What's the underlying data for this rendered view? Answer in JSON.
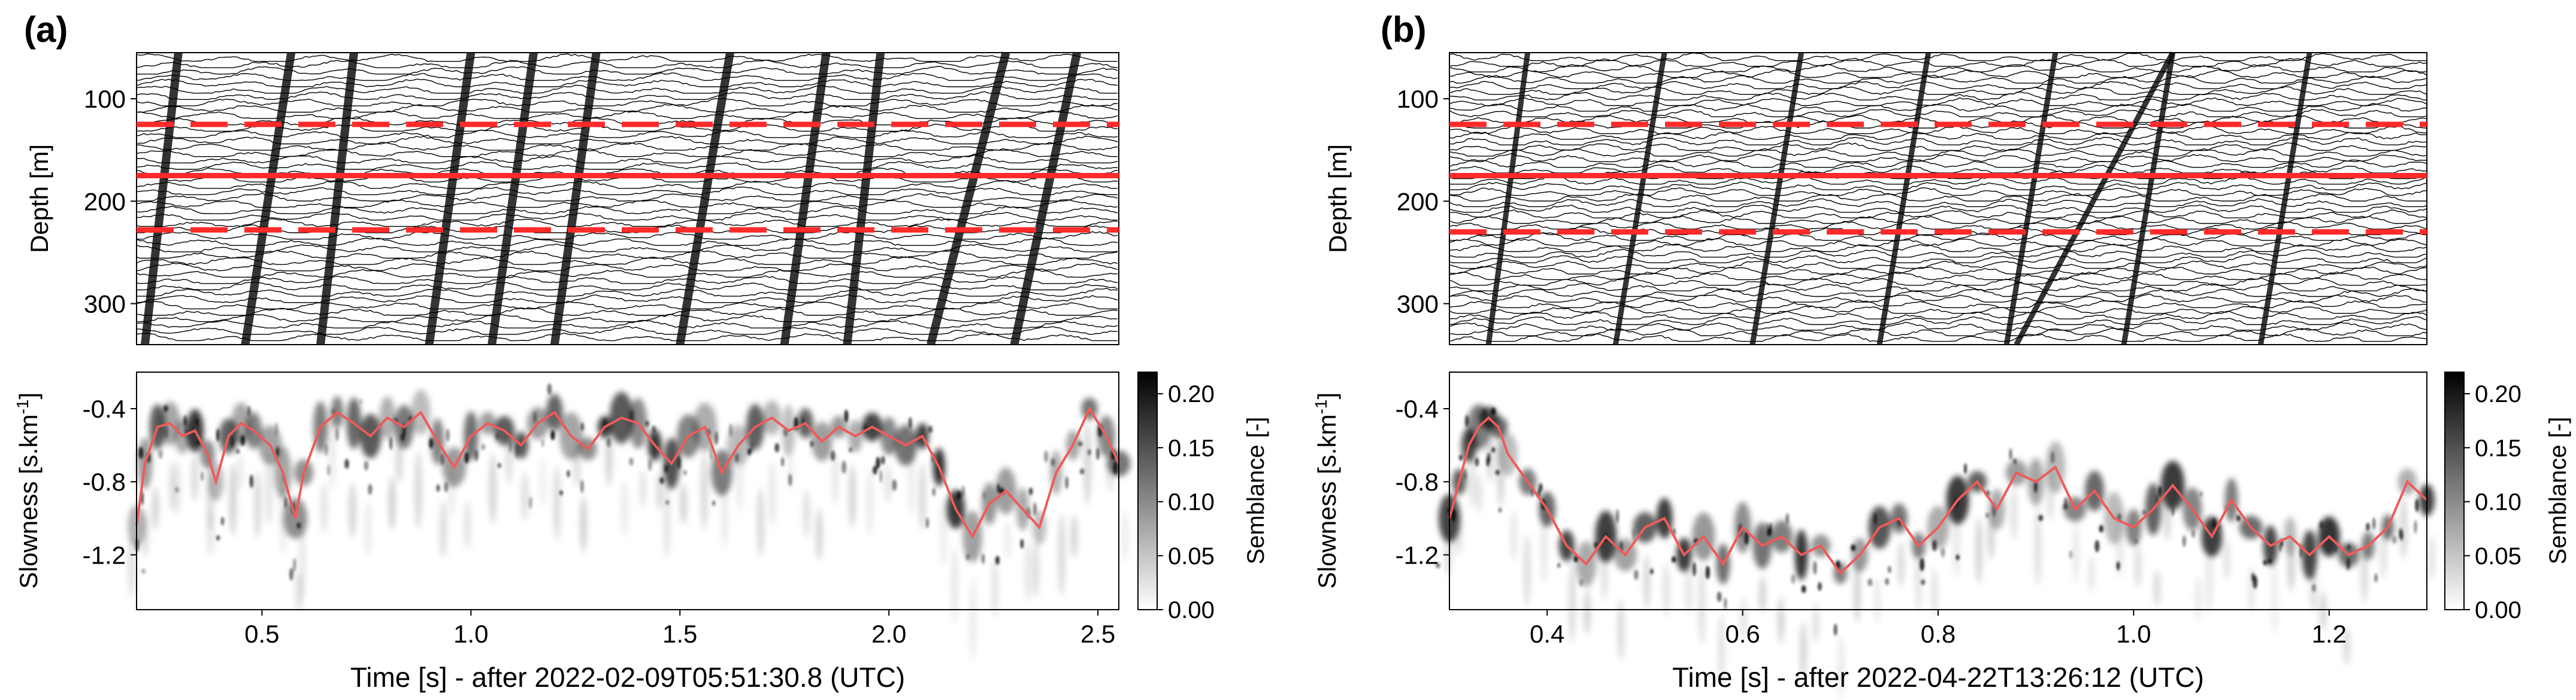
{
  "figure": {
    "panels": [
      {
        "label": "(a)",
        "xlabel": "Time [s] - after 2022-02-09T05:51:30.8 (UTC)",
        "xlim": [
          0.2,
          2.55
        ],
        "xticks": [
          0.5,
          1.0,
          1.5,
          2.0,
          2.5
        ],
        "xtick_labels": [
          "0.5",
          "1.0",
          "1.5",
          "2.0",
          "2.5"
        ]
      },
      {
        "label": "(b)",
        "xlabel": "Time [s] - after 2022-04-22T13:26:12 (UTC)",
        "xlim": [
          0.3,
          1.3
        ],
        "xticks": [
          0.4,
          0.6,
          0.8,
          1.0,
          1.2
        ],
        "xtick_labels": [
          "0.4",
          "0.6",
          "0.8",
          "1.0",
          "1.2"
        ]
      }
    ],
    "colors": {
      "marker": "#ff2a2a",
      "curve": "#ef5a5a",
      "trace": "#000000"
    }
  },
  "chart_data": [
    {
      "type": "line",
      "panel": "(a)",
      "subplot": "wiggle",
      "title": "",
      "xlabel": "",
      "ylabel": "Depth [m]",
      "xlim": [
        0.2,
        2.55
      ],
      "ylim": [
        340,
        55
      ],
      "yticks": [
        100,
        200,
        300
      ],
      "ytick_labels": [
        "100",
        "200",
        "300"
      ],
      "reference_lines": [
        {
          "depth": 125,
          "style": "dashed"
        },
        {
          "depth": 175,
          "style": "solid"
        },
        {
          "depth": 228,
          "style": "dashed"
        }
      ],
      "event_slopes": [
        {
          "t_top": 0.3,
          "t_bottom": 0.22
        },
        {
          "t_top": 0.57,
          "t_bottom": 0.46
        },
        {
          "t_top": 0.72,
          "t_bottom": 0.64
        },
        {
          "t_top": 1.0,
          "t_bottom": 0.9
        },
        {
          "t_top": 1.15,
          "t_bottom": 1.05
        },
        {
          "t_top": 1.3,
          "t_bottom": 1.2
        },
        {
          "t_top": 1.62,
          "t_bottom": 1.5
        },
        {
          "t_top": 1.85,
          "t_bottom": 1.75
        },
        {
          "t_top": 1.98,
          "t_bottom": 1.9
        },
        {
          "t_top": 2.28,
          "t_bottom": 2.1
        },
        {
          "t_top": 2.45,
          "t_bottom": 2.3
        }
      ]
    },
    {
      "type": "heatmap",
      "panel": "(a)",
      "subplot": "semblance",
      "title": "",
      "xlabel": "Time [s] - after 2022-02-09T05:51:30.8 (UTC)",
      "ylabel": "Slowness [s.km-1]",
      "xlim": [
        0.2,
        2.55
      ],
      "ylim": [
        -1.5,
        -0.2
      ],
      "yticks": [
        -0.4,
        -0.8,
        -1.2
      ],
      "ytick_labels": [
        "-0.4",
        "-0.8",
        "-1.2"
      ],
      "colorbar": {
        "label": "Semblance [-]",
        "range": [
          0,
          0.22
        ],
        "ticks": [
          0.0,
          0.05,
          0.1,
          0.15,
          0.2
        ],
        "tick_labels": [
          "0.00",
          "0.05",
          "0.10",
          "0.15",
          "0.20"
        ]
      },
      "max_semblance_curve": {
        "x": [
          0.2,
          0.22,
          0.25,
          0.28,
          0.31,
          0.34,
          0.37,
          0.39,
          0.42,
          0.45,
          0.48,
          0.52,
          0.55,
          0.58,
          0.6,
          0.64,
          0.68,
          0.72,
          0.76,
          0.8,
          0.84,
          0.88,
          0.92,
          0.96,
          1.0,
          1.04,
          1.08,
          1.12,
          1.16,
          1.2,
          1.24,
          1.28,
          1.32,
          1.36,
          1.4,
          1.44,
          1.48,
          1.52,
          1.56,
          1.6,
          1.64,
          1.68,
          1.72,
          1.76,
          1.8,
          1.84,
          1.88,
          1.92,
          1.96,
          2.0,
          2.04,
          2.08,
          2.12,
          2.16,
          2.2,
          2.24,
          2.28,
          2.32,
          2.36,
          2.4,
          2.44,
          2.48,
          2.52,
          2.55
        ],
        "y": [
          -1.04,
          -0.7,
          -0.5,
          -0.48,
          -0.55,
          -0.52,
          -0.65,
          -0.8,
          -0.55,
          -0.48,
          -0.52,
          -0.6,
          -0.75,
          -1.0,
          -0.75,
          -0.5,
          -0.42,
          -0.48,
          -0.55,
          -0.45,
          -0.5,
          -0.42,
          -0.58,
          -0.72,
          -0.55,
          -0.48,
          -0.52,
          -0.6,
          -0.48,
          -0.42,
          -0.55,
          -0.62,
          -0.5,
          -0.45,
          -0.48,
          -0.6,
          -0.7,
          -0.55,
          -0.5,
          -0.75,
          -0.6,
          -0.5,
          -0.45,
          -0.52,
          -0.48,
          -0.58,
          -0.5,
          -0.55,
          -0.5,
          -0.55,
          -0.6,
          -0.55,
          -0.72,
          -0.95,
          -1.1,
          -0.92,
          -0.85,
          -0.95,
          -1.05,
          -0.75,
          -0.6,
          -0.4,
          -0.55,
          -0.7
        ]
      }
    },
    {
      "type": "line",
      "panel": "(b)",
      "subplot": "wiggle",
      "title": "",
      "xlabel": "",
      "ylabel": "Depth [m]",
      "xlim": [
        0.3,
        1.3
      ],
      "ylim": [
        340,
        55
      ],
      "yticks": [
        100,
        200,
        300
      ],
      "ytick_labels": [
        "100",
        "200",
        "300"
      ],
      "reference_lines": [
        {
          "depth": 125,
          "style": "dashed"
        },
        {
          "depth": 175,
          "style": "solid"
        },
        {
          "depth": 230,
          "style": "dashed"
        }
      ],
      "event_slopes": [
        {
          "t_top": 0.38,
          "t_bottom": 0.34
        },
        {
          "t_top": 0.52,
          "t_bottom": 0.47
        },
        {
          "t_top": 0.66,
          "t_bottom": 0.61
        },
        {
          "t_top": 0.79,
          "t_bottom": 0.74
        },
        {
          "t_top": 0.92,
          "t_bottom": 0.87
        },
        {
          "t_top": 1.04,
          "t_bottom": 0.99
        },
        {
          "t_top": 1.18,
          "t_bottom": 1.13
        },
        {
          "t_top": 1.04,
          "t_bottom": 0.88
        }
      ]
    },
    {
      "type": "heatmap",
      "panel": "(b)",
      "subplot": "semblance",
      "title": "",
      "xlabel": "Time [s] - after 2022-04-22T13:26:12 (UTC)",
      "ylabel": "Slowness [s.km-1]",
      "xlim": [
        0.3,
        1.3
      ],
      "ylim": [
        -1.5,
        -0.2
      ],
      "yticks": [
        -0.4,
        -0.8,
        -1.2
      ],
      "ytick_labels": [
        "-0.4",
        "-0.8",
        "-1.2"
      ],
      "colorbar": {
        "label": "Semblance [-]",
        "range": [
          0,
          0.22
        ],
        "ticks": [
          0.0,
          0.05,
          0.1,
          0.15,
          0.2
        ],
        "tick_labels": [
          "0.00",
          "0.05",
          "0.10",
          "0.15",
          "0.20"
        ]
      },
      "max_semblance_curve": {
        "x": [
          0.3,
          0.31,
          0.32,
          0.33,
          0.34,
          0.35,
          0.36,
          0.38,
          0.4,
          0.42,
          0.44,
          0.46,
          0.48,
          0.5,
          0.52,
          0.54,
          0.56,
          0.58,
          0.6,
          0.62,
          0.64,
          0.66,
          0.68,
          0.7,
          0.72,
          0.74,
          0.76,
          0.78,
          0.8,
          0.82,
          0.84,
          0.86,
          0.88,
          0.9,
          0.92,
          0.94,
          0.96,
          0.98,
          1.0,
          1.02,
          1.04,
          1.06,
          1.08,
          1.1,
          1.12,
          1.14,
          1.16,
          1.18,
          1.2,
          1.22,
          1.24,
          1.26,
          1.28,
          1.3
        ],
        "y": [
          -1.0,
          -0.8,
          -0.6,
          -0.5,
          -0.45,
          -0.5,
          -0.65,
          -0.8,
          -0.95,
          -1.15,
          -1.25,
          -1.1,
          -1.2,
          -1.05,
          -1.0,
          -1.2,
          -1.1,
          -1.25,
          -1.05,
          -1.15,
          -1.1,
          -1.2,
          -1.15,
          -1.3,
          -1.2,
          -1.05,
          -1.0,
          -1.15,
          -1.05,
          -0.9,
          -0.8,
          -0.95,
          -0.75,
          -0.8,
          -0.72,
          -0.95,
          -0.85,
          -1.0,
          -1.05,
          -0.95,
          -0.82,
          -0.95,
          -1.1,
          -0.9,
          -1.05,
          -1.15,
          -1.1,
          -1.2,
          -1.1,
          -1.2,
          -1.15,
          -1.05,
          -0.8,
          -0.9
        ]
      }
    }
  ]
}
